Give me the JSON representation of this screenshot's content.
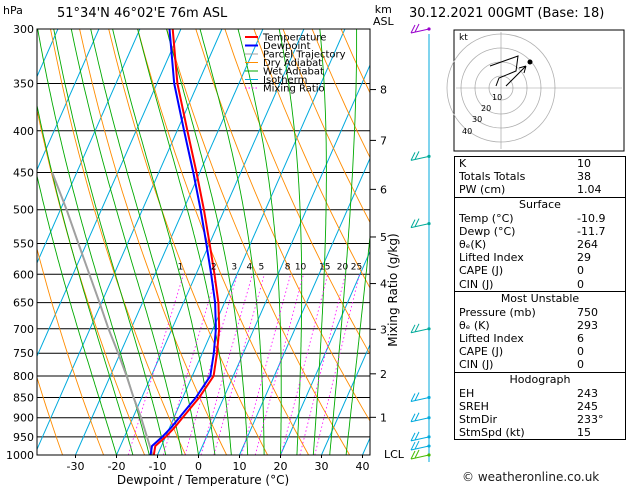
{
  "header": {
    "pressure_unit": "hPa",
    "location": "51°34'N  46°02'E  76m  ASL",
    "km_label": "km",
    "asl_label": "ASL",
    "datetime": "30.12.2021  00GMT  (Base: 18)"
  },
  "chart_data": {
    "type": "skew-t",
    "xlabel": "Dewpoint / Temperature (°C)",
    "right_axis_label": "Mixing Ratio (g/kg)",
    "pressure_levels": [
      300,
      350,
      400,
      450,
      500,
      550,
      600,
      650,
      700,
      750,
      800,
      850,
      900,
      950,
      1000
    ],
    "temperature_ticks": [
      -30,
      -20,
      -10,
      0,
      10,
      20,
      30,
      40
    ],
    "km_ticks": [
      {
        "km": "8",
        "p": 356
      },
      {
        "km": "7",
        "p": 411
      },
      {
        "km": "6",
        "p": 472
      },
      {
        "km": "5",
        "p": 540
      },
      {
        "km": "4",
        "p": 616
      },
      {
        "km": "3",
        "p": 701
      },
      {
        "km": "2",
        "p": 795
      },
      {
        "km": "1",
        "p": 899
      }
    ],
    "lcl_label": "LCL",
    "mixing_ratio_labels": [
      "1",
      "2",
      "3",
      "4",
      "5",
      "8",
      "10",
      "15",
      "20",
      "25"
    ],
    "mixing_ratio_values": [
      1,
      2,
      3,
      4,
      5,
      8,
      10,
      15,
      20,
      25
    ],
    "legend": [
      {
        "label": "Temperature",
        "color": "#ff0000"
      },
      {
        "label": "Dewpoint",
        "color": "#0000ff"
      },
      {
        "label": "Parcel Trajectory",
        "color": "#a0a0a0"
      },
      {
        "label": "Dry Adiabat",
        "color": "#ff8c00"
      },
      {
        "label": "Wet Adiabat",
        "color": "#00aa00"
      },
      {
        "label": "Isotherm",
        "color": "#00aadd"
      },
      {
        "label": "Mixing Ratio",
        "color": "#ff00ff"
      }
    ],
    "temperature_profile": [
      {
        "p": 1000,
        "t": -10.9
      },
      {
        "p": 975,
        "t": -11.5
      },
      {
        "p": 950,
        "t": -10.0
      },
      {
        "p": 925,
        "t": -8.8
      },
      {
        "p": 900,
        "t": -7.9
      },
      {
        "p": 850,
        "t": -6.0
      },
      {
        "p": 800,
        "t": -4.8
      },
      {
        "p": 750,
        "t": -6.4
      },
      {
        "p": 700,
        "t": -8.5
      },
      {
        "p": 650,
        "t": -11.5
      },
      {
        "p": 600,
        "t": -15.5
      },
      {
        "p": 550,
        "t": -20.0
      },
      {
        "p": 500,
        "t": -25.0
      },
      {
        "p": 450,
        "t": -30.8
      },
      {
        "p": 400,
        "t": -37.5
      },
      {
        "p": 350,
        "t": -45.0
      },
      {
        "p": 300,
        "t": -52.0
      }
    ],
    "dewpoint_profile": [
      {
        "p": 1000,
        "t": -11.7
      },
      {
        "p": 975,
        "t": -12.3
      },
      {
        "p": 950,
        "t": -10.8
      },
      {
        "p": 925,
        "t": -9.6
      },
      {
        "p": 900,
        "t": -8.7
      },
      {
        "p": 850,
        "t": -6.8
      },
      {
        "p": 800,
        "t": -5.6
      },
      {
        "p": 750,
        "t": -7.2
      },
      {
        "p": 700,
        "t": -9.3
      },
      {
        "p": 650,
        "t": -12.3
      },
      {
        "p": 600,
        "t": -16.3
      },
      {
        "p": 550,
        "t": -20.8
      },
      {
        "p": 500,
        "t": -25.8
      },
      {
        "p": 450,
        "t": -31.6
      },
      {
        "p": 400,
        "t": -38.3
      },
      {
        "p": 350,
        "t": -45.8
      },
      {
        "p": 300,
        "t": -52.8
      }
    ],
    "parcel_profile": [
      {
        "p": 1000,
        "t": -11.2
      },
      {
        "p": 950,
        "t": -14.5
      },
      {
        "p": 900,
        "t": -18.0
      },
      {
        "p": 850,
        "t": -22.0
      },
      {
        "p": 800,
        "t": -26.0
      },
      {
        "p": 750,
        "t": -30.5
      },
      {
        "p": 700,
        "t": -35.5
      },
      {
        "p": 650,
        "t": -40.5
      },
      {
        "p": 600,
        "t": -46.0
      },
      {
        "p": 550,
        "t": -52.0
      },
      {
        "p": 500,
        "t": -58.5
      },
      {
        "p": 450,
        "t": -66.0
      }
    ]
  },
  "hodograph": {
    "label": "kt",
    "ring_labels": [
      "10",
      "20",
      "30",
      "40"
    ]
  },
  "indices": {
    "rows": [
      {
        "k": "K",
        "v": "10"
      },
      {
        "k": "Totals Totals",
        "v": "38"
      },
      {
        "k": "PW (cm)",
        "v": "1.04"
      }
    ],
    "surface": {
      "title": "Surface",
      "rows": [
        {
          "k": "Temp (°C)",
          "v": "-10.9"
        },
        {
          "k": "Dewp (°C)",
          "v": "-11.7"
        },
        {
          "k": "θₑ(K)",
          "v": "264"
        },
        {
          "k": "Lifted Index",
          "v": "29"
        },
        {
          "k": "CAPE (J)",
          "v": "0"
        },
        {
          "k": "CIN (J)",
          "v": "0"
        }
      ]
    },
    "most_unstable": {
      "title": "Most Unstable",
      "rows": [
        {
          "k": "Pressure (mb)",
          "v": "750"
        },
        {
          "k": "θₑ (K)",
          "v": "293"
        },
        {
          "k": "Lifted Index",
          "v": "6"
        },
        {
          "k": "CAPE (J)",
          "v": "0"
        },
        {
          "k": "CIN (J)",
          "v": "0"
        }
      ]
    },
    "hodograph": {
      "title": "Hodograph",
      "rows": [
        {
          "k": "EH",
          "v": "243"
        },
        {
          "k": "SREH",
          "v": "245"
        },
        {
          "k": "StmDir",
          "v": "233°"
        },
        {
          "k": "StmSpd (kt)",
          "v": "15"
        }
      ]
    }
  },
  "footer": "© weatheronline.co.uk"
}
